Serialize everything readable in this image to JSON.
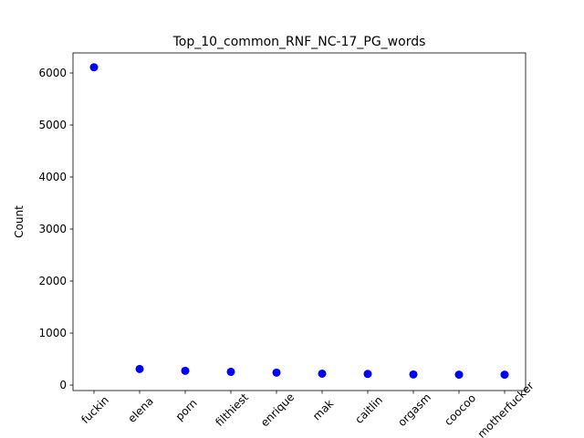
{
  "chart_data": {
    "type": "scatter",
    "title": "Top_10_common_RNF_NC-17_PG_words",
    "y_label": "Count",
    "categories": [
      "fuckin",
      "elena",
      "porn",
      "filthiest",
      "enrique",
      "mak",
      "caitlin",
      "orgasm",
      "coocoo",
      "motherfucker"
    ],
    "values": [
      6110,
      310,
      275,
      255,
      240,
      220,
      215,
      205,
      200,
      200
    ],
    "color": "#0000ff",
    "ylim": [
      -105,
      6386
    ],
    "yticks": [
      0,
      1000,
      2000,
      3000,
      4000,
      5000,
      6000
    ]
  }
}
